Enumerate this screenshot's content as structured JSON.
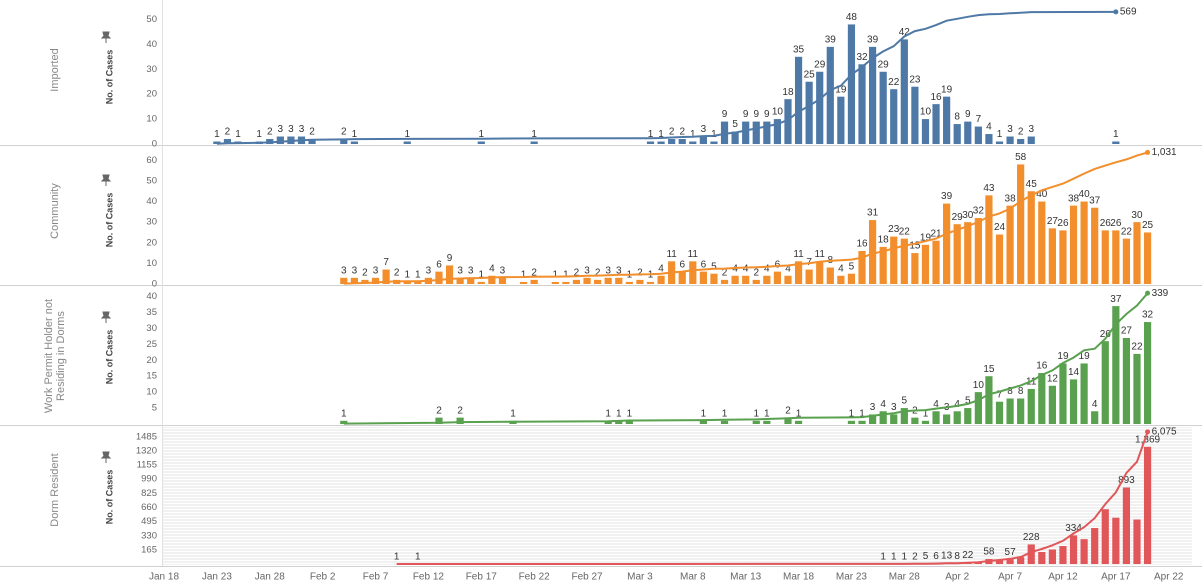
{
  "chart_data": {
    "type": "bar",
    "y_label": "No. of Cases",
    "categories": [
      "Jan 18",
      null,
      null,
      null,
      null,
      "Jan 23",
      null,
      null,
      null,
      null,
      "Jan 28",
      null,
      null,
      null,
      null,
      "Feb 2",
      null,
      null,
      null,
      null,
      "Feb 7",
      null,
      null,
      null,
      null,
      "Feb 12",
      null,
      null,
      null,
      null,
      "Feb 17",
      null,
      null,
      null,
      null,
      "Feb 22",
      null,
      null,
      null,
      null,
      "Feb 27",
      null,
      null,
      null,
      null,
      "Mar 3",
      null,
      null,
      null,
      null,
      "Mar 8",
      null,
      null,
      null,
      null,
      "Mar 13",
      null,
      null,
      null,
      null,
      "Mar 18",
      null,
      null,
      null,
      null,
      "Mar 23",
      null,
      null,
      null,
      null,
      "Mar 28",
      null,
      null,
      null,
      null,
      "Apr 2",
      null,
      null,
      null,
      null,
      "Apr 7",
      null,
      null,
      null,
      null,
      "Apr 12",
      null,
      null,
      null,
      null,
      "Apr 17",
      null,
      null,
      null,
      null,
      "Apr 22"
    ],
    "series": [
      {
        "name": "Imported",
        "color": "#4e79a7",
        "ylim": [
          0,
          55
        ],
        "yticks": [
          0,
          10,
          20,
          30,
          40,
          50
        ],
        "y2lim": [
          0,
          590
        ],
        "total": 569,
        "values": [
          null,
          null,
          null,
          null,
          null,
          1,
          2,
          1,
          null,
          1,
          2,
          3,
          3,
          3,
          2,
          null,
          null,
          2,
          1,
          null,
          null,
          null,
          null,
          1,
          null,
          null,
          null,
          null,
          null,
          null,
          1,
          null,
          null,
          null,
          null,
          1,
          null,
          null,
          null,
          null,
          null,
          null,
          null,
          null,
          null,
          null,
          1,
          1,
          2,
          2,
          1,
          3,
          1,
          9,
          5,
          9,
          9,
          9,
          10,
          18,
          35,
          25,
          29,
          39,
          19,
          48,
          32,
          39,
          29,
          22,
          42,
          23,
          10,
          16,
          19,
          8,
          9,
          7,
          4,
          1,
          3,
          2,
          3,
          null,
          null,
          null,
          null,
          null,
          null,
          null,
          1,
          null,
          null,
          null,
          null,
          null
        ]
      },
      {
        "name": "Community",
        "color": "#f28e2b",
        "ylim": [
          0,
          65
        ],
        "yticks": [
          0,
          10,
          20,
          30,
          40,
          50,
          60
        ],
        "y2lim": [
          0,
          1050
        ],
        "total": {
          "value": 1031,
          "label": "1,031"
        },
        "values": [
          null,
          null,
          null,
          null,
          null,
          null,
          null,
          null,
          null,
          null,
          null,
          null,
          null,
          null,
          null,
          null,
          null,
          3,
          3,
          2,
          3,
          7,
          2,
          1,
          1,
          3,
          6,
          9,
          3,
          3,
          1,
          4,
          3,
          null,
          1,
          2,
          null,
          1,
          1,
          2,
          3,
          2,
          3,
          3,
          1,
          2,
          1,
          4,
          11,
          6,
          11,
          6,
          5,
          2,
          4,
          4,
          2,
          4,
          6,
          4,
          11,
          7,
          11,
          8,
          4,
          5,
          16,
          31,
          18,
          23,
          22,
          15,
          19,
          21,
          39,
          29,
          30,
          32,
          43,
          24,
          38,
          58,
          45,
          40,
          27,
          26,
          38,
          40,
          37,
          26,
          26,
          22,
          30,
          25,
          null,
          null
        ]
      },
      {
        "name": "Work Permit Holder not Residing in Dorms",
        "color": "#59a14f",
        "ylim": [
          0,
          43
        ],
        "yticks": [
          5,
          10,
          15,
          20,
          25,
          30,
          35,
          40
        ],
        "y2lim": [
          0,
          355
        ],
        "total": 339,
        "values": [
          null,
          null,
          null,
          null,
          null,
          null,
          null,
          null,
          null,
          null,
          null,
          null,
          null,
          null,
          null,
          null,
          null,
          1,
          null,
          null,
          null,
          null,
          null,
          null,
          null,
          null,
          2,
          null,
          2,
          null,
          null,
          null,
          null,
          1,
          null,
          null,
          null,
          null,
          null,
          null,
          null,
          null,
          1,
          1,
          1,
          null,
          null,
          null,
          null,
          null,
          null,
          1,
          null,
          1,
          null,
          null,
          1,
          1,
          null,
          2,
          1,
          null,
          null,
          null,
          null,
          1,
          1,
          3,
          4,
          3,
          5,
          2,
          1,
          4,
          3,
          4,
          5,
          10,
          15,
          7,
          8,
          8,
          11,
          16,
          12,
          19,
          14,
          19,
          4,
          26,
          37,
          27,
          22,
          32,
          null,
          null
        ]
      },
      {
        "name": "Dorm Resident",
        "color": "#e15759",
        "ylim": [
          0,
          1600
        ],
        "yticks": [
          165,
          330,
          495,
          660,
          825,
          990,
          1155,
          1320,
          1485
        ],
        "y2lim": [
          0,
          6300
        ],
        "total": {
          "value": 6075,
          "label": "6,075"
        },
        "values": [
          null,
          null,
          null,
          null,
          null,
          null,
          null,
          null,
          null,
          null,
          null,
          null,
          null,
          null,
          null,
          null,
          null,
          null,
          null,
          null,
          null,
          null,
          1,
          null,
          1,
          null,
          null,
          null,
          null,
          null,
          null,
          null,
          null,
          null,
          null,
          null,
          null,
          null,
          null,
          null,
          null,
          null,
          null,
          null,
          null,
          null,
          null,
          null,
          null,
          null,
          null,
          null,
          null,
          null,
          null,
          null,
          null,
          null,
          null,
          null,
          null,
          null,
          null,
          null,
          null,
          null,
          null,
          null,
          1,
          1,
          1,
          2,
          5,
          6,
          13,
          8,
          22,
          20,
          58,
          45,
          57,
          80,
          228,
          140,
          170,
          210,
          334,
          290,
          420,
          640,
          540,
          893,
          520,
          1369,
          null,
          null
        ],
        "value_labels": [
          null,
          null,
          null,
          null,
          null,
          null,
          null,
          null,
          null,
          null,
          null,
          null,
          null,
          null,
          null,
          null,
          null,
          null,
          null,
          null,
          null,
          null,
          "1",
          null,
          "1",
          null,
          null,
          null,
          null,
          null,
          null,
          null,
          null,
          null,
          null,
          null,
          null,
          null,
          null,
          null,
          null,
          null,
          null,
          null,
          null,
          null,
          null,
          null,
          null,
          null,
          null,
          null,
          null,
          null,
          null,
          null,
          null,
          null,
          null,
          null,
          null,
          null,
          null,
          null,
          null,
          null,
          null,
          null,
          "1",
          "1",
          "1",
          "2",
          "5",
          "6",
          "13",
          "8",
          "22",
          null,
          "58",
          null,
          "57",
          null,
          "228",
          null,
          null,
          null,
          "334",
          null,
          null,
          null,
          null,
          "893",
          null,
          "1,369",
          null,
          null
        ]
      }
    ]
  }
}
